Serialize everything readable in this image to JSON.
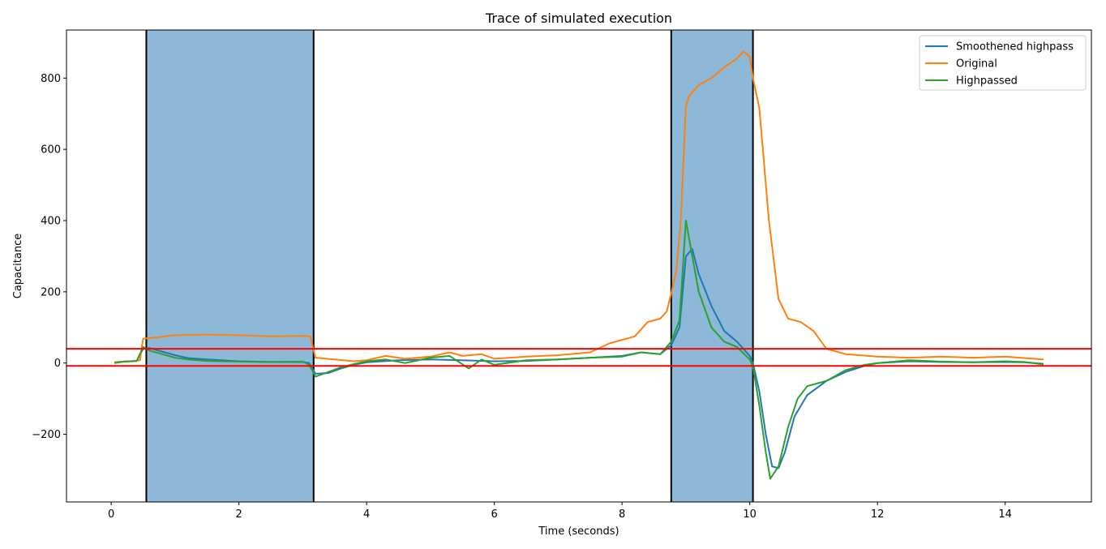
{
  "chart_data": {
    "type": "line",
    "title": "Trace of simulated execution",
    "xlabel": "Time (seconds)",
    "ylabel": "Capacitance",
    "xlim": [
      -0.7,
      15.35
    ],
    "ylim": [
      -390,
      935
    ],
    "xticks": [
      0,
      2,
      4,
      6,
      8,
      10,
      12,
      14
    ],
    "xtick_labels": [
      "0",
      "2",
      "4",
      "6",
      "8",
      "10",
      "12",
      "14"
    ],
    "yticks": [
      -200,
      0,
      200,
      400,
      600,
      800
    ],
    "ytick_labels": [
      "−200",
      "0",
      "200",
      "400",
      "600",
      "800"
    ],
    "grid": false,
    "legend_position": "top-right",
    "shaded_regions": [
      {
        "x0": 0.55,
        "x1": 3.17,
        "color": "#8db8d8"
      },
      {
        "x0": 8.77,
        "x1": 10.05,
        "color": "#8db8d8"
      }
    ],
    "vertical_lines": [
      0.55,
      3.17,
      8.77,
      10.05
    ],
    "threshold_lines": [
      {
        "y": 40,
        "color": "#ff0000"
      },
      {
        "y": -8,
        "color": "#ff0000"
      }
    ],
    "series": [
      {
        "name": "Smoothened highpass",
        "color": "#1f77b4",
        "points": [
          [
            0.05,
            2
          ],
          [
            0.2,
            4
          ],
          [
            0.4,
            6
          ],
          [
            0.5,
            40
          ],
          [
            0.6,
            42
          ],
          [
            0.8,
            32
          ],
          [
            1.0,
            22
          ],
          [
            1.2,
            14
          ],
          [
            1.5,
            10
          ],
          [
            2.0,
            5
          ],
          [
            2.5,
            3
          ],
          [
            3.0,
            3
          ],
          [
            3.1,
            0
          ],
          [
            3.2,
            -30
          ],
          [
            3.4,
            -28
          ],
          [
            3.6,
            -15
          ],
          [
            3.8,
            -5
          ],
          [
            4.0,
            2
          ],
          [
            4.5,
            8
          ],
          [
            5.0,
            10
          ],
          [
            5.5,
            8
          ],
          [
            6.0,
            5
          ],
          [
            6.5,
            6
          ],
          [
            7.0,
            10
          ],
          [
            7.5,
            15
          ],
          [
            8.0,
            20
          ],
          [
            8.3,
            30
          ],
          [
            8.6,
            25
          ],
          [
            8.77,
            50
          ],
          [
            8.9,
            100
          ],
          [
            9.0,
            300
          ],
          [
            9.1,
            320
          ],
          [
            9.2,
            250
          ],
          [
            9.4,
            160
          ],
          [
            9.6,
            90
          ],
          [
            9.8,
            60
          ],
          [
            10.0,
            20
          ],
          [
            10.05,
            0
          ],
          [
            10.15,
            -80
          ],
          [
            10.25,
            -200
          ],
          [
            10.35,
            -290
          ],
          [
            10.45,
            -295
          ],
          [
            10.55,
            -250
          ],
          [
            10.7,
            -150
          ],
          [
            10.9,
            -90
          ],
          [
            11.2,
            -50
          ],
          [
            11.5,
            -25
          ],
          [
            11.8,
            -8
          ],
          [
            12.0,
            0
          ],
          [
            12.5,
            5
          ],
          [
            13.0,
            3
          ],
          [
            13.5,
            2
          ],
          [
            14.0,
            3
          ],
          [
            14.3,
            2
          ],
          [
            14.6,
            -2
          ]
        ]
      },
      {
        "name": "Original",
        "color": "#ff7f0e",
        "points": [
          [
            0.05,
            2
          ],
          [
            0.3,
            5
          ],
          [
            0.45,
            8
          ],
          [
            0.5,
            68
          ],
          [
            0.7,
            72
          ],
          [
            1.0,
            78
          ],
          [
            1.5,
            80
          ],
          [
            2.0,
            78
          ],
          [
            2.5,
            75
          ],
          [
            3.0,
            76
          ],
          [
            3.12,
            75
          ],
          [
            3.2,
            15
          ],
          [
            3.5,
            10
          ],
          [
            3.8,
            5
          ],
          [
            4.0,
            8
          ],
          [
            4.3,
            20
          ],
          [
            4.6,
            12
          ],
          [
            5.0,
            18
          ],
          [
            5.3,
            30
          ],
          [
            5.5,
            20
          ],
          [
            5.8,
            25
          ],
          [
            6.0,
            12
          ],
          [
            6.5,
            18
          ],
          [
            7.0,
            22
          ],
          [
            7.5,
            30
          ],
          [
            7.8,
            55
          ],
          [
            8.0,
            65
          ],
          [
            8.2,
            75
          ],
          [
            8.4,
            115
          ],
          [
            8.6,
            125
          ],
          [
            8.7,
            145
          ],
          [
            8.77,
            195
          ],
          [
            8.85,
            260
          ],
          [
            8.92,
            400
          ],
          [
            9.0,
            720
          ],
          [
            9.05,
            750
          ],
          [
            9.2,
            780
          ],
          [
            9.4,
            800
          ],
          [
            9.6,
            830
          ],
          [
            9.8,
            855
          ],
          [
            9.9,
            875
          ],
          [
            10.0,
            860
          ],
          [
            10.05,
            800
          ],
          [
            10.15,
            715
          ],
          [
            10.3,
            400
          ],
          [
            10.45,
            180
          ],
          [
            10.6,
            125
          ],
          [
            10.8,
            115
          ],
          [
            11.0,
            90
          ],
          [
            11.2,
            40
          ],
          [
            11.5,
            25
          ],
          [
            12.0,
            18
          ],
          [
            12.5,
            15
          ],
          [
            13.0,
            18
          ],
          [
            13.5,
            15
          ],
          [
            14.0,
            18
          ],
          [
            14.3,
            14
          ],
          [
            14.6,
            10
          ]
        ]
      },
      {
        "name": "Highpassed",
        "color": "#2ca02c",
        "points": [
          [
            0.05,
            0
          ],
          [
            0.2,
            4
          ],
          [
            0.4,
            6
          ],
          [
            0.5,
            45
          ],
          [
            0.6,
            35
          ],
          [
            0.8,
            25
          ],
          [
            1.0,
            15
          ],
          [
            1.2,
            10
          ],
          [
            1.5,
            6
          ],
          [
            2.0,
            4
          ],
          [
            2.5,
            3
          ],
          [
            3.0,
            4
          ],
          [
            3.1,
            -5
          ],
          [
            3.2,
            -38
          ],
          [
            3.4,
            -25
          ],
          [
            3.6,
            -12
          ],
          [
            3.8,
            -3
          ],
          [
            4.0,
            5
          ],
          [
            4.3,
            10
          ],
          [
            4.6,
            0
          ],
          [
            5.0,
            15
          ],
          [
            5.3,
            20
          ],
          [
            5.6,
            -15
          ],
          [
            5.8,
            10
          ],
          [
            6.0,
            -5
          ],
          [
            6.5,
            8
          ],
          [
            7.0,
            10
          ],
          [
            7.5,
            15
          ],
          [
            8.0,
            18
          ],
          [
            8.3,
            30
          ],
          [
            8.6,
            25
          ],
          [
            8.77,
            60
          ],
          [
            8.9,
            120
          ],
          [
            9.0,
            400
          ],
          [
            9.1,
            300
          ],
          [
            9.2,
            200
          ],
          [
            9.4,
            100
          ],
          [
            9.6,
            60
          ],
          [
            9.8,
            45
          ],
          [
            10.0,
            10
          ],
          [
            10.05,
            -10
          ],
          [
            10.15,
            -120
          ],
          [
            10.25,
            -250
          ],
          [
            10.32,
            -325
          ],
          [
            10.45,
            -290
          ],
          [
            10.6,
            -180
          ],
          [
            10.75,
            -100
          ],
          [
            10.9,
            -65
          ],
          [
            11.2,
            -50
          ],
          [
            11.5,
            -20
          ],
          [
            11.8,
            -5
          ],
          [
            12.0,
            0
          ],
          [
            12.5,
            8
          ],
          [
            13.0,
            4
          ],
          [
            13.5,
            2
          ],
          [
            14.0,
            5
          ],
          [
            14.3,
            3
          ],
          [
            14.6,
            -4
          ]
        ]
      }
    ]
  }
}
